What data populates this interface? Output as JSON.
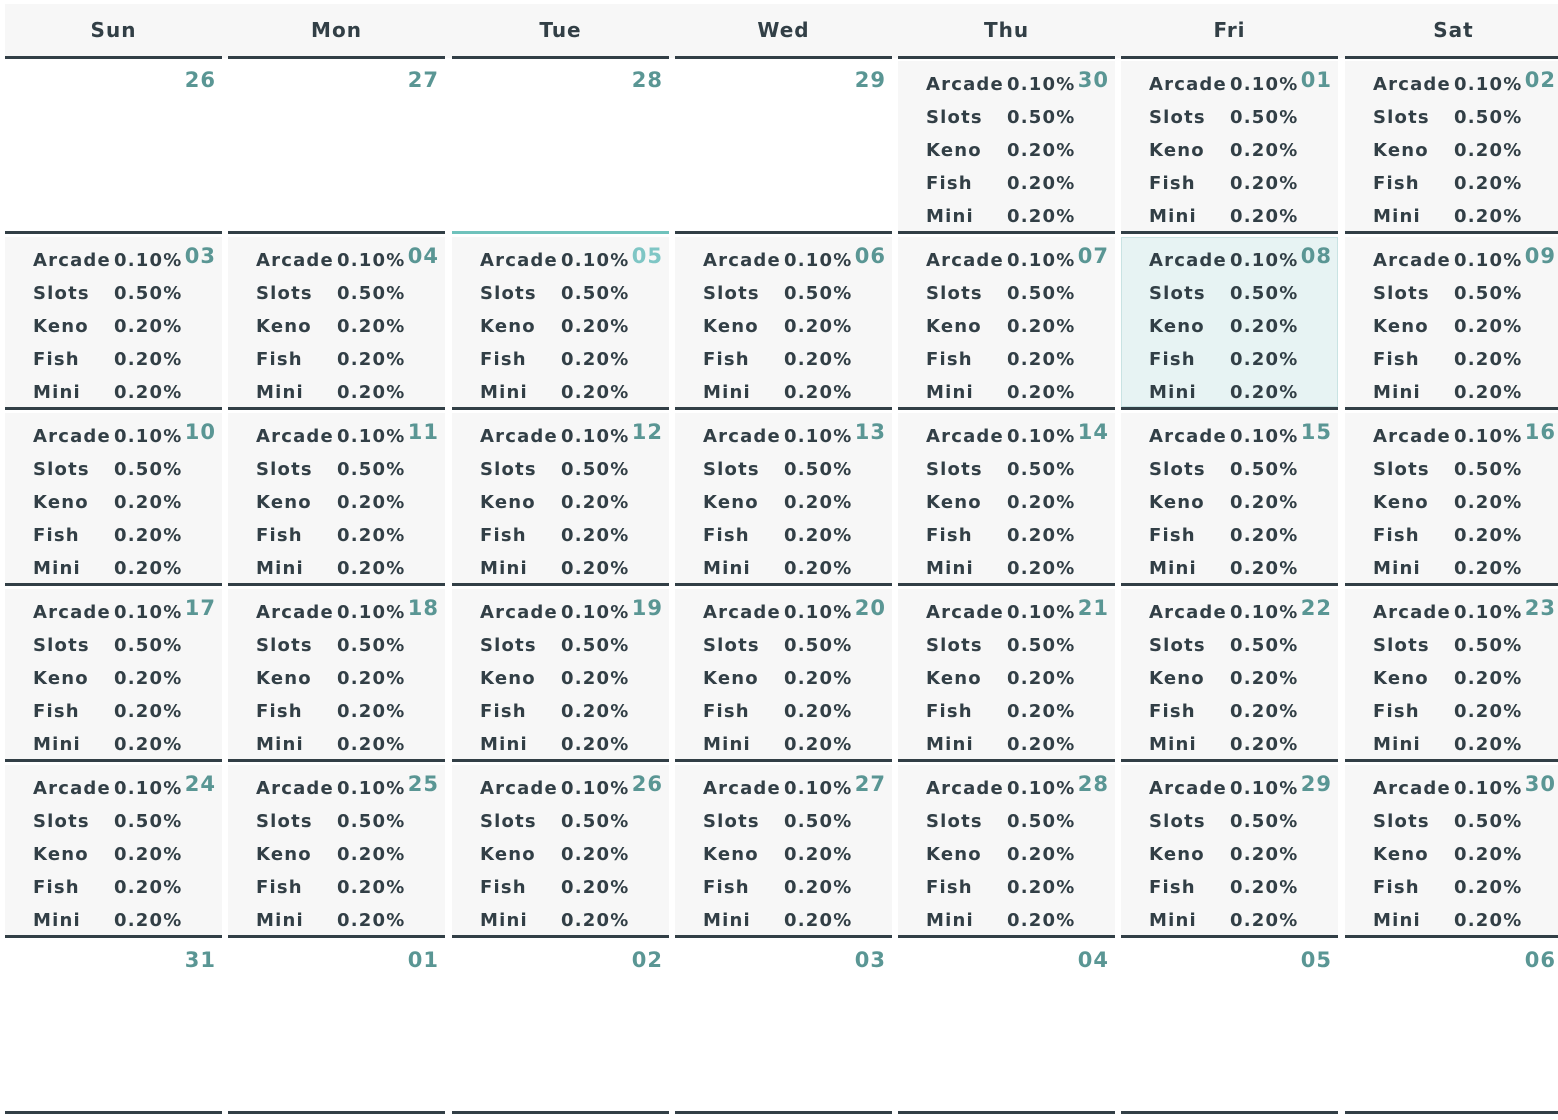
{
  "weekdays": [
    "Sun",
    "Mon",
    "Tue",
    "Wed",
    "Thu",
    "Fri",
    "Sat"
  ],
  "rate_categories": [
    {
      "name": "Arcade",
      "value": "0.10%"
    },
    {
      "name": "Slots",
      "value": "0.50%"
    },
    {
      "name": "Keno",
      "value": "0.20%"
    },
    {
      "name": "Fish",
      "value": "0.20%"
    },
    {
      "name": "Mini",
      "value": "0.20%"
    }
  ],
  "weeks": [
    {
      "days": [
        {
          "num": "26",
          "has_rates": false
        },
        {
          "num": "27",
          "has_rates": false
        },
        {
          "num": "28",
          "has_rates": false
        },
        {
          "num": "29",
          "has_rates": false
        },
        {
          "num": "30",
          "has_rates": true
        },
        {
          "num": "01",
          "has_rates": true
        },
        {
          "num": "02",
          "has_rates": true
        }
      ]
    },
    {
      "days": [
        {
          "num": "03",
          "has_rates": true
        },
        {
          "num": "04",
          "has_rates": true
        },
        {
          "num": "05",
          "has_rates": true,
          "selected": true
        },
        {
          "num": "06",
          "has_rates": true
        },
        {
          "num": "07",
          "has_rates": true
        },
        {
          "num": "08",
          "has_rates": true,
          "today": true
        },
        {
          "num": "09",
          "has_rates": true
        }
      ]
    },
    {
      "days": [
        {
          "num": "10",
          "has_rates": true
        },
        {
          "num": "11",
          "has_rates": true
        },
        {
          "num": "12",
          "has_rates": true
        },
        {
          "num": "13",
          "has_rates": true
        },
        {
          "num": "14",
          "has_rates": true
        },
        {
          "num": "15",
          "has_rates": true
        },
        {
          "num": "16",
          "has_rates": true
        }
      ]
    },
    {
      "days": [
        {
          "num": "17",
          "has_rates": true
        },
        {
          "num": "18",
          "has_rates": true
        },
        {
          "num": "19",
          "has_rates": true
        },
        {
          "num": "20",
          "has_rates": true
        },
        {
          "num": "21",
          "has_rates": true
        },
        {
          "num": "22",
          "has_rates": true
        },
        {
          "num": "23",
          "has_rates": true
        }
      ]
    },
    {
      "days": [
        {
          "num": "24",
          "has_rates": true
        },
        {
          "num": "25",
          "has_rates": true
        },
        {
          "num": "26",
          "has_rates": true
        },
        {
          "num": "27",
          "has_rates": true
        },
        {
          "num": "28",
          "has_rates": true
        },
        {
          "num": "29",
          "has_rates": true
        },
        {
          "num": "30",
          "has_rates": true
        }
      ]
    },
    {
      "days": [
        {
          "num": "31",
          "has_rates": false
        },
        {
          "num": "01",
          "has_rates": false
        },
        {
          "num": "02",
          "has_rates": false
        },
        {
          "num": "03",
          "has_rates": false
        },
        {
          "num": "04",
          "has_rates": false
        },
        {
          "num": "05",
          "has_rates": false
        },
        {
          "num": "06",
          "has_rates": false
        }
      ]
    }
  ],
  "colors": {
    "border": "#323f46",
    "day_number": "#5a9694",
    "selected_accent": "#6fc2bc",
    "today_bg": "#e7f3f3",
    "cell_bg": "#f7f7f7"
  }
}
